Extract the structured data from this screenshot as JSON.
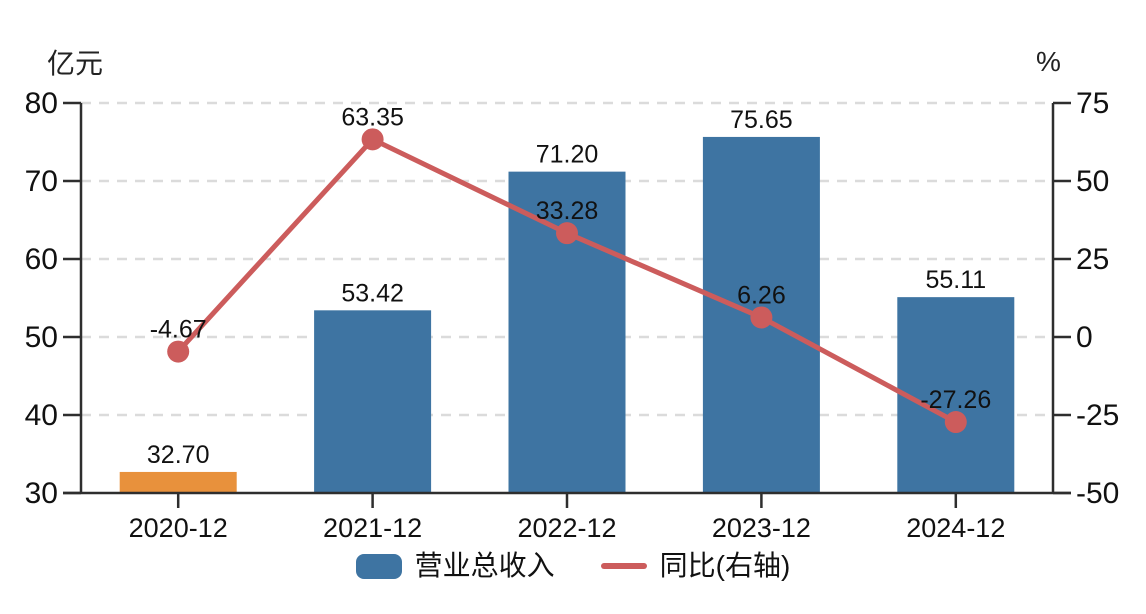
{
  "chart_data": {
    "type": "bar",
    "title": "",
    "categories": [
      "2020-12",
      "2021-12",
      "2022-12",
      "2023-12",
      "2024-12"
    ],
    "series": [
      {
        "name": "营业总收入",
        "type": "bar",
        "axis": "left",
        "values": [
          32.7,
          53.42,
          71.2,
          75.65,
          55.11
        ],
        "colors": [
          "#E8913C",
          "#3E74A2",
          "#3E74A2",
          "#3E74A2",
          "#3E74A2"
        ]
      },
      {
        "name": "同比(右轴)",
        "type": "line",
        "axis": "right",
        "values": [
          -4.67,
          63.35,
          33.28,
          6.26,
          -27.26
        ],
        "color": "#CC5C5C"
      }
    ],
    "left_axis": {
      "unit": "亿元",
      "min": 30,
      "max": 80,
      "ticks": [
        30,
        40,
        50,
        60,
        70,
        80
      ]
    },
    "right_axis": {
      "unit": "%",
      "min": -50,
      "max": 75,
      "ticks": [
        -50,
        -25,
        0,
        25,
        50,
        75
      ]
    },
    "grid": true,
    "legend_position": "bottom"
  },
  "colors": {
    "bar_default": "#3E74A2",
    "bar_highlight": "#E8913C",
    "line": "#CC5C5C",
    "axis": "#2E2E2E",
    "grid": "#DBDBDB",
    "text": "#111111"
  }
}
